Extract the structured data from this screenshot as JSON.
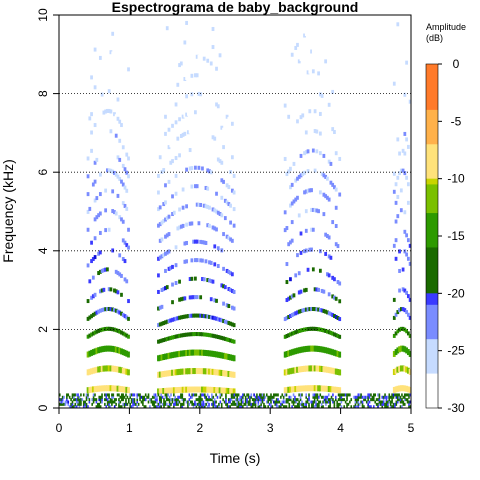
{
  "chart_data": {
    "type": "heatmap",
    "title": "Espectrograma de baby_background",
    "xlabel": "Time (s)",
    "ylabel": "Frequency (kHz)",
    "xlim": [
      0,
      5
    ],
    "ylim": [
      0,
      10
    ],
    "x_ticks": [
      "0",
      "1",
      "2",
      "3",
      "4",
      "5"
    ],
    "y_ticks": [
      "0",
      "2",
      "4",
      "6",
      "8",
      "10"
    ],
    "grid": {
      "horizontal_dotted_at": [
        2,
        4,
        6,
        8
      ]
    },
    "colorbar": {
      "title_line1": "Amplitude",
      "title_line2": "(dB)",
      "range": [
        -30,
        0
      ],
      "ticks": [
        "0",
        "-5",
        "-10",
        "-15",
        "-20",
        "-25",
        "-30"
      ]
    },
    "harmonic_stacks": [
      {
        "t_start": 0.4,
        "t_end": 1.0,
        "f0_khz": 0.45
      },
      {
        "t_start": 1.4,
        "t_end": 2.5,
        "f0_khz": 0.42
      },
      {
        "t_start": 3.2,
        "t_end": 4.0,
        "f0_khz": 0.45
      },
      {
        "t_start": 4.75,
        "t_end": 5.0,
        "f0_khz": 0.45
      }
    ]
  }
}
